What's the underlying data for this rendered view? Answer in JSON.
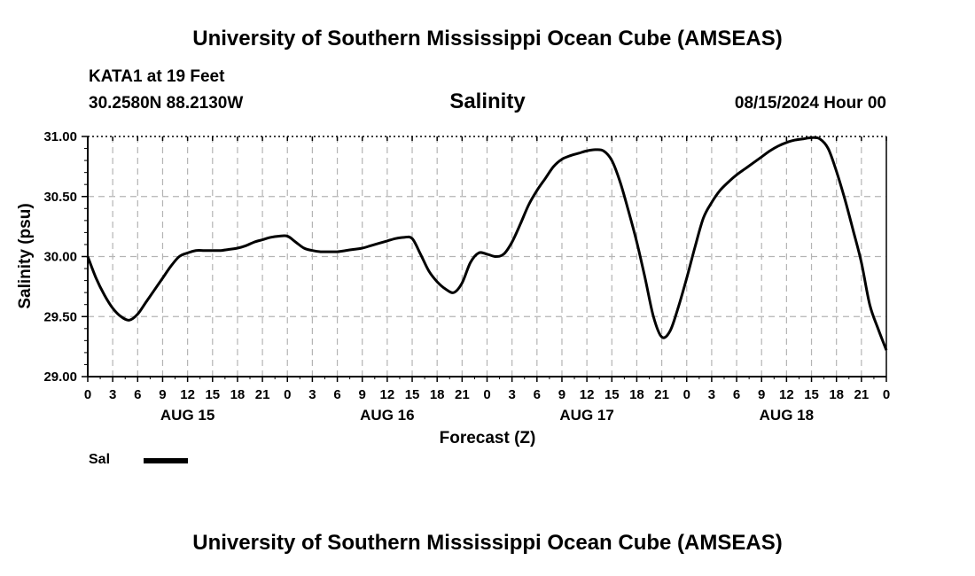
{
  "header": {
    "title": "University of Southern Mississippi Ocean Cube (AMSEAS)",
    "station": "KATA1 at 19 Feet",
    "coords": "30.2580N  88.2130W",
    "variable": "Salinity",
    "datetime": "08/15/2024 Hour 00"
  },
  "footer": {
    "title": "University of Southern Mississippi Ocean Cube (AMSEAS)"
  },
  "legend": {
    "label": "Sal"
  },
  "chart_data": {
    "type": "line",
    "title": "Salinity",
    "xlabel": "Forecast (Z)",
    "ylabel": "Salinity (psu)",
    "ylim": [
      29.0,
      31.0
    ],
    "yticks": [
      "29.00",
      "29.50",
      "30.00",
      "30.50",
      "31.00"
    ],
    "xlim_hours": [
      0,
      96
    ],
    "xtick_labels": [
      "0",
      "3",
      "6",
      "9",
      "12",
      "15",
      "18",
      "21",
      "0",
      "3",
      "6",
      "9",
      "12",
      "15",
      "18",
      "21",
      "0",
      "3",
      "6",
      "9",
      "12",
      "15",
      "18",
      "21",
      "0",
      "3",
      "6",
      "9",
      "12",
      "15",
      "18",
      "21",
      "0"
    ],
    "day_labels": [
      {
        "hour": 12,
        "label": "AUG 15"
      },
      {
        "hour": 36,
        "label": "AUG 16"
      },
      {
        "hour": 60,
        "label": "AUG 17"
      },
      {
        "hour": 84,
        "label": "AUG 18"
      }
    ],
    "grid": true,
    "series": [
      {
        "name": "Sal",
        "color": "#000000",
        "x": [
          0,
          1,
          2,
          3,
          4,
          5,
          6,
          7,
          8,
          9,
          10,
          11,
          12,
          13,
          14,
          15,
          16,
          17,
          18,
          19,
          20,
          21,
          22,
          23,
          24,
          25,
          26,
          27,
          28,
          29,
          30,
          31,
          32,
          33,
          34,
          35,
          36,
          37,
          38,
          39,
          40,
          41,
          42,
          43,
          44,
          45,
          46,
          47,
          48,
          49,
          50,
          51,
          52,
          53,
          54,
          55,
          56,
          57,
          58,
          59,
          60,
          61,
          62,
          63,
          64,
          65,
          66,
          67,
          68,
          69,
          70,
          71,
          72,
          73,
          74,
          75,
          76,
          77,
          78,
          79,
          80,
          81,
          82,
          83,
          84,
          85,
          86,
          87,
          88,
          89,
          90,
          91,
          92,
          93,
          94,
          95,
          96
        ],
        "values": [
          30.0,
          29.82,
          29.68,
          29.57,
          29.5,
          29.47,
          29.52,
          29.62,
          29.72,
          29.82,
          29.92,
          30.0,
          30.03,
          30.05,
          30.05,
          30.05,
          30.05,
          30.06,
          30.07,
          30.09,
          30.12,
          30.14,
          30.16,
          30.17,
          30.17,
          30.12,
          30.07,
          30.05,
          30.04,
          30.04,
          30.04,
          30.05,
          30.06,
          30.07,
          30.09,
          30.11,
          30.13,
          30.15,
          30.16,
          30.15,
          30.02,
          29.88,
          29.79,
          29.73,
          29.7,
          29.78,
          29.95,
          30.03,
          30.02,
          30.0,
          30.02,
          30.12,
          30.27,
          30.43,
          30.55,
          30.65,
          30.75,
          30.81,
          30.84,
          30.86,
          30.88,
          30.89,
          30.88,
          30.8,
          30.62,
          30.38,
          30.12,
          29.82,
          29.5,
          29.33,
          29.38,
          29.58,
          29.82,
          30.08,
          30.32,
          30.45,
          30.55,
          30.62,
          30.68,
          30.73,
          30.78,
          30.83,
          30.88,
          30.92,
          30.95,
          30.97,
          30.98,
          30.99,
          30.98,
          30.9,
          30.71,
          30.48,
          30.22,
          29.95,
          29.6,
          29.4,
          29.22
        ]
      }
    ]
  }
}
